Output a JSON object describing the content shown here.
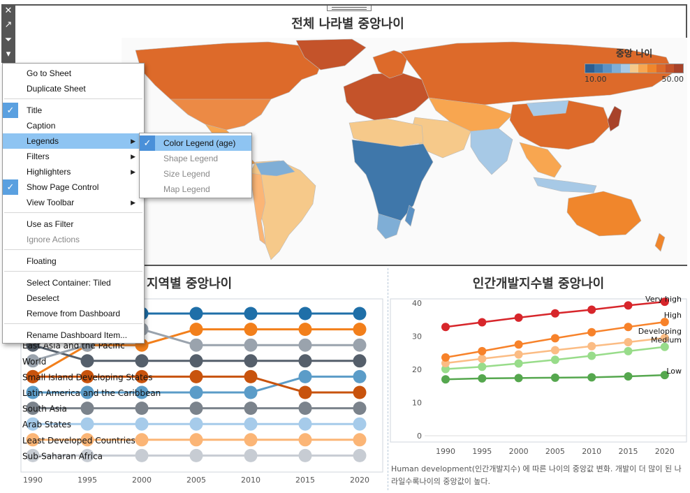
{
  "map_panel": {
    "title": "전체 나라별 중앙나이",
    "legend": {
      "title": "중앙 나이",
      "min_label": "10.00",
      "max_label": "50.00",
      "colors": [
        "#2c5d8f",
        "#3f77aa",
        "#5c92c4",
        "#7faed6",
        "#a7c9e6",
        "#f6c98a",
        "#f8a650",
        "#f0862c",
        "#dd6a2a",
        "#c4532a",
        "#a8432a"
      ]
    }
  },
  "toolbar": {
    "close_icon": "✕",
    "popout_icon": "↗",
    "filter_icon": "⏷",
    "more_icon": "▾"
  },
  "context_menu": {
    "items": [
      {
        "label": "Go to Sheet"
      },
      {
        "label": "Duplicate Sheet"
      },
      {
        "label": "Title",
        "checked": true
      },
      {
        "label": "Caption"
      },
      {
        "label": "Legends",
        "submenu": true,
        "active": true
      },
      {
        "label": "Filters",
        "submenu": true
      },
      {
        "label": "Highlighters",
        "submenu": true
      },
      {
        "label": "Show Page Control",
        "checked": true
      },
      {
        "label": "View Toolbar",
        "submenu": true
      },
      {
        "label": "Use as Filter"
      },
      {
        "label": "Ignore Actions",
        "disabled": true
      },
      {
        "label": "Floating"
      },
      {
        "label": "Select Container: Tiled"
      },
      {
        "label": "Deselect"
      },
      {
        "label": "Remove from Dashboard"
      },
      {
        "label": "Rename Dashboard Item..."
      }
    ],
    "legends_submenu": [
      {
        "label": "Color Legend (age)",
        "checked": true,
        "active": true
      },
      {
        "label": "Shape Legend",
        "disabled": true
      },
      {
        "label": "Size Legend",
        "disabled": true
      },
      {
        "label": "Map Legend",
        "disabled": true
      }
    ]
  },
  "regional_panel": {
    "title": "지역별 중앙나이",
    "chart_data": {
      "type": "line",
      "note": "bump chart of regional median-age rank",
      "x": [
        "1990",
        "1995",
        "2000",
        "2005",
        "2010",
        "2015",
        "2020"
      ],
      "series": [
        {
          "name": "World",
          "color": "#9aa3ad",
          "ranks": [
            4,
            3,
            2,
            3,
            3,
            3,
            3
          ]
        },
        {
          "name": "East Asia and the Pacific",
          "color": "#555f6b",
          "ranks": [
            3,
            4,
            4,
            4,
            4,
            4,
            4
          ]
        },
        {
          "name": "Small Island Developing States",
          "color": "#c8530d",
          "ranks": [
            5,
            5,
            5,
            5,
            5,
            6,
            6
          ]
        },
        {
          "name": "Latin America and the Caribbean",
          "color": "#5b9cc8",
          "ranks": [
            6,
            6,
            6,
            6,
            6,
            5,
            5
          ]
        },
        {
          "name": "South Asia",
          "color": "#7b838c",
          "ranks": [
            7,
            7,
            7,
            7,
            7,
            7,
            7
          ]
        },
        {
          "name": "Arab States",
          "color": "#a6cbea",
          "ranks": [
            8,
            8,
            8,
            8,
            8,
            8,
            8
          ]
        },
        {
          "name": "Least Developed Countries",
          "color": "#fbb576",
          "ranks": [
            9,
            9,
            9,
            9,
            9,
            9,
            9
          ]
        },
        {
          "name": "Sub-Saharan Africa",
          "color": "#c7ccd3",
          "ranks": [
            10,
            10,
            10,
            10,
            10,
            10,
            10
          ]
        },
        {
          "name": "",
          "color": "#1f6fa8",
          "ranks": [
            1,
            1,
            1,
            1,
            1,
            1,
            1
          ]
        },
        {
          "name": "",
          "color": "#f27f1b",
          "ranks": [
            5,
            3,
            3,
            2,
            2,
            2,
            2
          ]
        }
      ]
    }
  },
  "hdi_panel": {
    "title": "인간개발지수별 중앙나이",
    "caption": "Human development(인간개발지수) 에 따른 나이의 중앙값 변화. 개발이 더 많이 된 나라일수록나이의 중앙값이 높다.",
    "chart_data": {
      "type": "line",
      "x": [
        "1990",
        "1995",
        "2000",
        "2005",
        "2010",
        "2015",
        "2020"
      ],
      "yticks": [
        "0",
        "10",
        "20",
        "30",
        "40"
      ],
      "ylim": [
        0,
        42
      ],
      "series": [
        {
          "name": "Very high",
          "color": "#d7262b",
          "values": [
            32.8,
            34.2,
            35.6,
            36.9,
            38.0,
            39.3,
            40.4
          ]
        },
        {
          "name": "High",
          "color": "#f7822a",
          "values": [
            23.6,
            25.5,
            27.5,
            29.4,
            31.2,
            32.8,
            34.3
          ]
        },
        {
          "name": "Developing",
          "color": "#fbbc84",
          "values": [
            21.9,
            23.2,
            24.5,
            25.8,
            27.0,
            28.2,
            29.5
          ]
        },
        {
          "name": "Medium",
          "color": "#98dc8a",
          "values": [
            20.1,
            20.8,
            21.8,
            22.9,
            24.1,
            25.5,
            26.8
          ]
        },
        {
          "name": "Low",
          "color": "#55a74e",
          "values": [
            17.0,
            17.3,
            17.4,
            17.5,
            17.6,
            17.9,
            18.3
          ]
        }
      ]
    }
  }
}
